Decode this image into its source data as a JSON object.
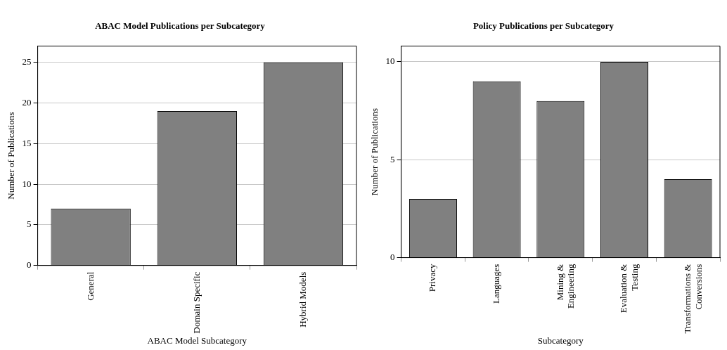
{
  "chart_data": [
    {
      "type": "bar",
      "title": "ABAC Model Publications per Subcategory",
      "xlabel": "ABAC Model Subcategory",
      "ylabel": "Number of Publications",
      "categories": [
        "General",
        "Domain Specific",
        "Hybrid Models"
      ],
      "values": [
        7,
        19,
        25
      ],
      "color": "#808080",
      "ylim": [
        0,
        27
      ],
      "yticks": [
        0,
        5,
        10,
        15,
        20,
        25
      ],
      "grid": "y",
      "legend": false
    },
    {
      "type": "bar",
      "title": "Policy Publications per Subcategory",
      "xlabel": "Subcategory",
      "ylabel": "Number of Publications",
      "categories": [
        "Privacy",
        "Languages",
        "Mining & Engineering",
        "Evaluation & Testing",
        "Transformations & Conversions"
      ],
      "values": [
        3,
        9,
        8,
        10,
        4
      ],
      "color": "#808080",
      "ylim": [
        0,
        10.8
      ],
      "yticks": [
        0,
        5,
        10
      ],
      "grid": "y",
      "legend": false
    }
  ]
}
